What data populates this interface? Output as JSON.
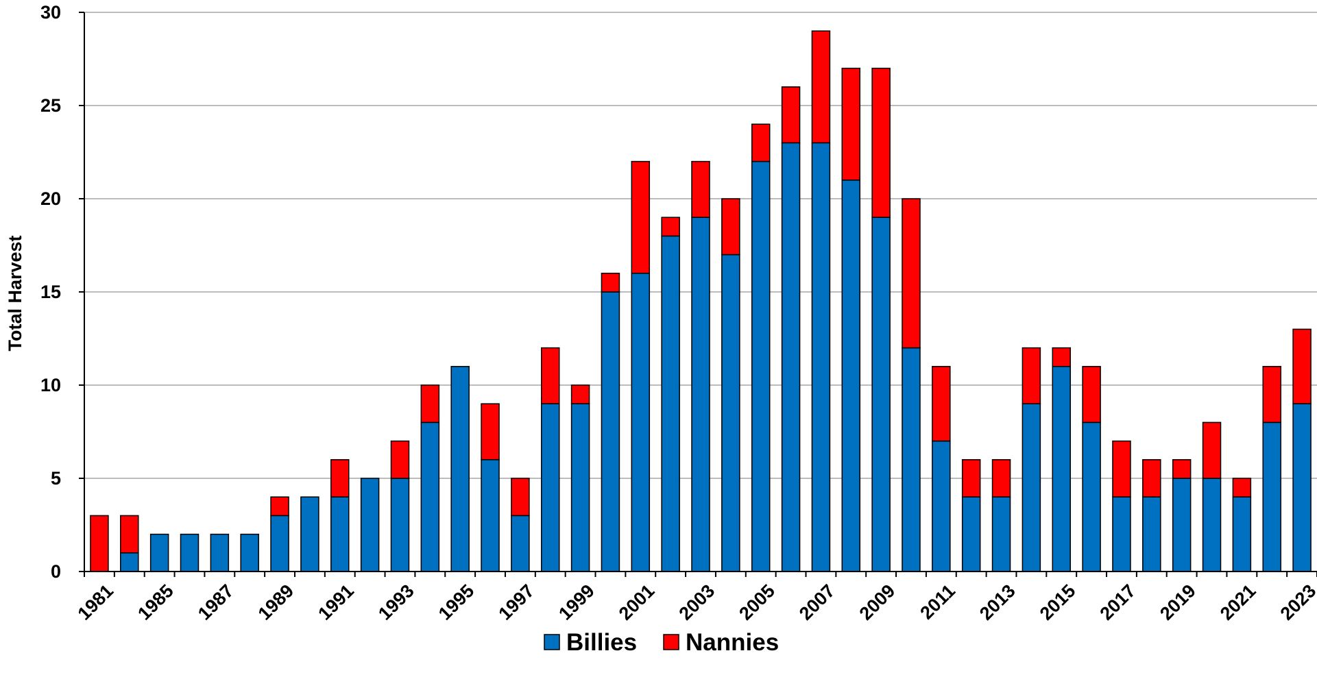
{
  "chart_data": {
    "type": "bar",
    "stacked": true,
    "title": "",
    "xlabel": "",
    "ylabel": "Total Harvest",
    "ylim": [
      0,
      30
    ],
    "yticks": [
      0,
      5,
      10,
      15,
      20,
      25,
      30
    ],
    "grid": "horizontal",
    "legend_position": "bottom-center",
    "categories": [
      "1981",
      "1984",
      "1985",
      "1986",
      "1987",
      "1988",
      "1989",
      "1990",
      "1991",
      "1992",
      "1993",
      "1994",
      "1995",
      "1996",
      "1997",
      "1998",
      "1999",
      "2000",
      "2001",
      "2002",
      "2003",
      "2004",
      "2005",
      "2006",
      "2007",
      "2008",
      "2009",
      "2010",
      "2011",
      "2012",
      "2013",
      "2014",
      "2015",
      "2016",
      "2017",
      "2018",
      "2019",
      "2020",
      "2021",
      "2022",
      "2023"
    ],
    "tick_labels": [
      "1981",
      "1985",
      "1987",
      "1989",
      "1991",
      "1993",
      "1995",
      "1997",
      "1999",
      "2001",
      "2003",
      "2005",
      "2007",
      "2009",
      "2011",
      "2013",
      "2015",
      "2017",
      "2019",
      "2021",
      "2023"
    ],
    "series": [
      {
        "name": "Billies",
        "color": "#0070C0",
        "values": [
          0,
          1,
          2,
          2,
          2,
          2,
          3,
          4,
          4,
          5,
          5,
          8,
          11,
          6,
          3,
          9,
          9,
          15,
          16,
          18,
          19,
          17,
          22,
          23,
          23,
          21,
          19,
          12,
          7,
          4,
          4,
          9,
          11,
          8,
          4,
          4,
          5,
          5,
          4,
          8,
          9
        ]
      },
      {
        "name": "Nannies",
        "color": "#FF0000",
        "values": [
          3,
          2,
          0,
          0,
          0,
          0,
          1,
          0,
          2,
          0,
          2,
          2,
          0,
          3,
          2,
          3,
          1,
          1,
          6,
          1,
          3,
          3,
          2,
          3,
          6,
          6,
          8,
          8,
          4,
          2,
          2,
          3,
          1,
          3,
          3,
          2,
          1,
          3,
          1,
          3,
          4
        ]
      }
    ]
  }
}
